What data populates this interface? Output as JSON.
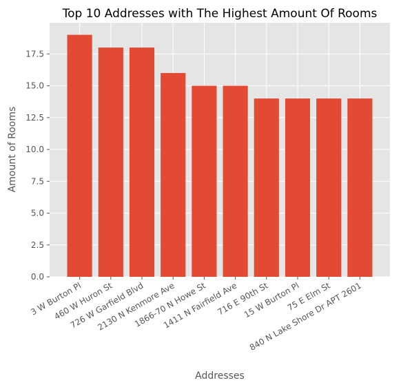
{
  "chart_data": {
    "type": "bar",
    "title": "Top 10 Addresses with The Highest Amount Of Rooms",
    "xlabel": "Addresses",
    "ylabel": "Amount of Rooms",
    "categories": [
      "3 W Burton Pl",
      "460 W Huron St",
      "726 W Garfield Blvd",
      "2130 N Kenmore Ave",
      "1866-70 N Howe St",
      "1411 N Fairfield Ave",
      "716 E 90th St",
      "15 W Burton Pl",
      "75 E Elm St",
      "840 N Lake Shore Dr APT 2601"
    ],
    "values": [
      19,
      18,
      18,
      16,
      15,
      15,
      14,
      14,
      14,
      14
    ],
    "ylim": [
      0,
      19.95
    ],
    "yticks": [
      "0.0",
      "2.5",
      "5.0",
      "7.5",
      "10.0",
      "12.5",
      "15.0",
      "17.5"
    ],
    "grid": true,
    "colors": {
      "bar": "#E24A33",
      "plot_background": "#E5E5E5",
      "grid": "#FFFFFF"
    }
  }
}
